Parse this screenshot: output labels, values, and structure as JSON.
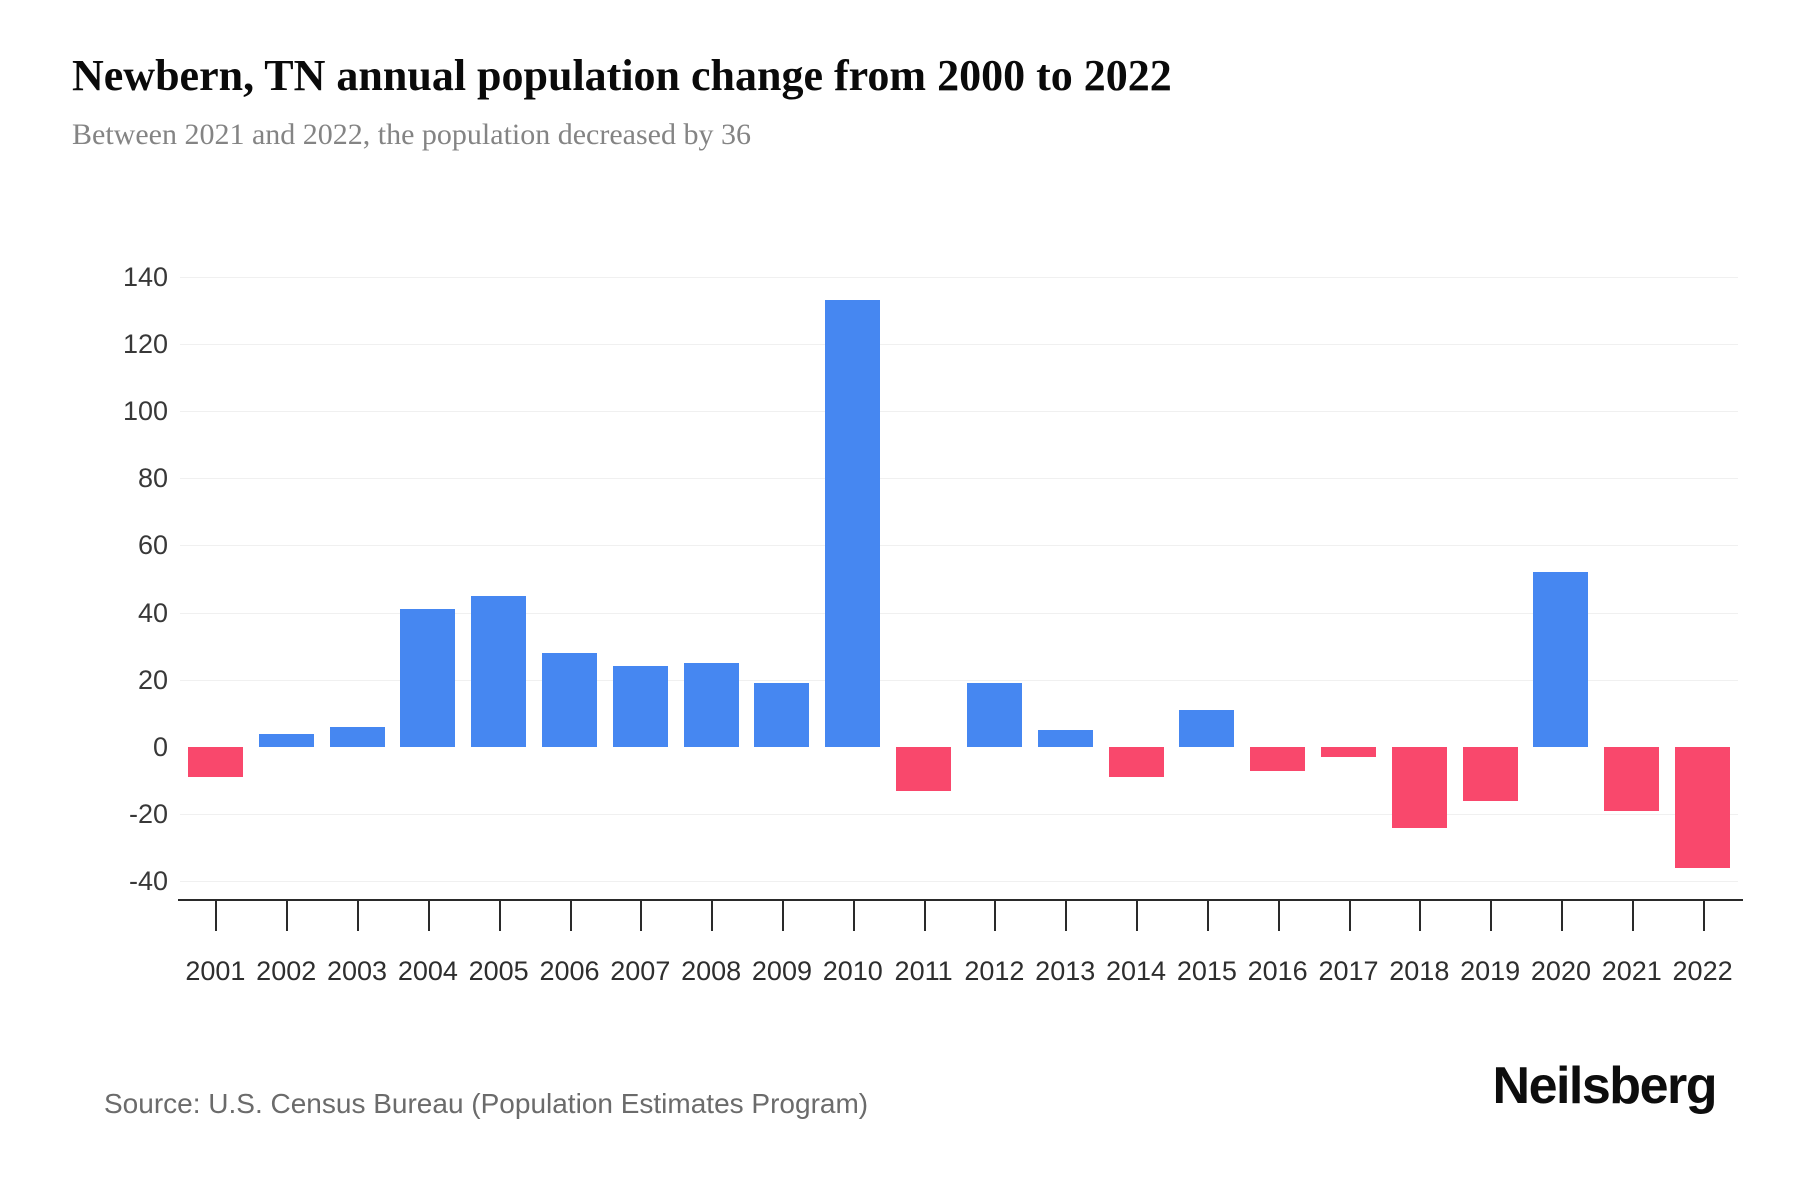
{
  "header": {
    "title": "Newbern, TN annual population change from 2000 to 2022",
    "subtitle": "Between 2021 and 2022, the population decreased by 36"
  },
  "footer": {
    "source": "Source: U.S. Census Bureau (Population Estimates Program)",
    "brand": "Neilsberg"
  },
  "colors": {
    "positive_bar": "#4687F1",
    "negative_bar": "#F9486C",
    "gridline": "#F0F0F0",
    "axis_line": "#2A2A2A",
    "axis_text": "#383838",
    "subtitle_text": "#848484",
    "source_text": "#6B6B6B"
  },
  "chart_data": {
    "type": "bar",
    "title": "Newbern, TN annual population change from 2000 to 2022",
    "subtitle": "Between 2021 and 2022, the population decreased by 36",
    "categories": [
      "2001",
      "2002",
      "2003",
      "2004",
      "2005",
      "2006",
      "2007",
      "2008",
      "2009",
      "2010",
      "2011",
      "2012",
      "2013",
      "2014",
      "2015",
      "2016",
      "2017",
      "2018",
      "2019",
      "2020",
      "2021",
      "2022"
    ],
    "values": [
      -9,
      4,
      6,
      41,
      45,
      28,
      24,
      25,
      19,
      133,
      -13,
      19,
      5,
      -9,
      11,
      -7,
      -3,
      -24,
      -16,
      52,
      -19,
      -36
    ],
    "xlabel": "",
    "ylabel": "",
    "ylim": [
      -40,
      140
    ],
    "yticks": [
      140,
      120,
      100,
      80,
      60,
      40,
      20,
      0,
      -20,
      -40
    ],
    "grid": true,
    "legend": false,
    "positive_color": "#4687F1",
    "negative_color": "#F9486C"
  }
}
